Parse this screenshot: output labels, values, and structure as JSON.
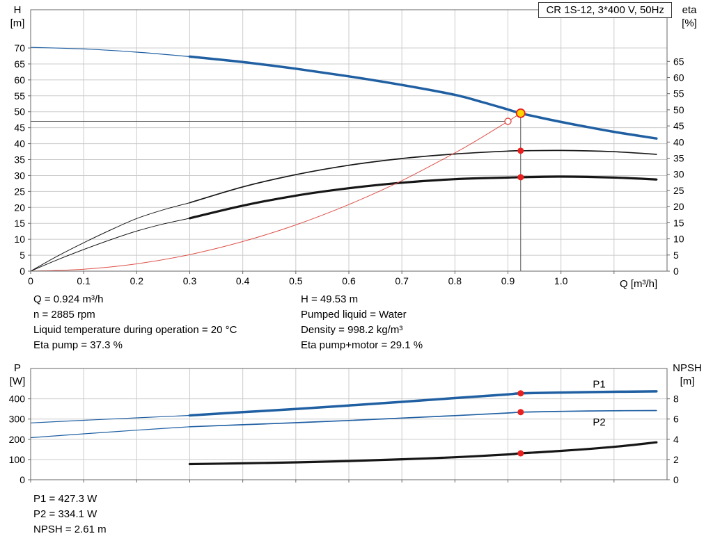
{
  "colors": {
    "blue": "#1f5fa2",
    "black": "#161616",
    "red": "#dd5148",
    "marker_red": "#e8201e",
    "yellow": "#ffd500",
    "grid": "#cbcbcb",
    "frame": "#666666",
    "ref": "#555555",
    "text": "#000000"
  },
  "operating_point_text": {
    "left": [
      "Q = 0.924 m³/h",
      "n = 2885 rpm",
      "Liquid temperature during operation = 20 °C",
      "Eta pump = 37.3 %"
    ],
    "right": [
      "H = 49.53 m",
      "Pumped liquid = Water",
      "Density = 998.2 kg/m³",
      "Eta pump+motor = 29.1 %"
    ]
  },
  "power_text": [
    "P1 = 427.3 W",
    "P2 = 334.1 W",
    "NPSH = 2.61 m"
  ],
  "chart_data": [
    {
      "type": "line",
      "name": "qh",
      "title": "CR 1S-12, 3*400 V, 50Hz",
      "x_axis": {
        "label": "Q [m³/h]",
        "min": 0,
        "max": 1.2,
        "ticks": [
          0,
          0.1,
          0.2,
          0.3,
          0.4,
          0.5,
          0.6,
          0.7,
          0.8,
          0.9,
          1.0,
          1.1
        ],
        "tick_labels": [
          "0",
          "0.1",
          "0.2",
          "0.3",
          "0.4",
          "0.5",
          "0.6",
          "0.7",
          "0.8",
          "0.9",
          "1.0",
          ""
        ],
        "show_labels": true
      },
      "y_left": {
        "name": "H",
        "unit": "[m]",
        "min": 0,
        "max": 82,
        "ticks": [
          0,
          5,
          10,
          15,
          20,
          25,
          30,
          35,
          40,
          45,
          50,
          55,
          60,
          65,
          70
        ]
      },
      "y_right": {
        "name": "eta",
        "unit": "[%]",
        "min": 0,
        "max": 81,
        "ticks": [
          0,
          5,
          10,
          15,
          20,
          25,
          30,
          35,
          40,
          45,
          50,
          55,
          60,
          65
        ]
      },
      "series": [
        {
          "name": "pump-curve-lead",
          "axis": "left",
          "color": "blue",
          "width": 1.2,
          "points": [
            [
              0,
              70.2
            ],
            [
              0.1,
              69.7
            ],
            [
              0.2,
              68.7
            ],
            [
              0.3,
              67.3
            ]
          ]
        },
        {
          "name": "pump-curve",
          "axis": "left",
          "color": "blue",
          "width": 3.5,
          "points": [
            [
              0.3,
              67.3
            ],
            [
              0.4,
              65.6
            ],
            [
              0.5,
              63.5
            ],
            [
              0.6,
              61.1
            ],
            [
              0.7,
              58.4
            ],
            [
              0.8,
              55.3
            ],
            [
              0.85,
              53.1
            ],
            [
              0.9,
              50.7
            ],
            [
              0.924,
              49.53
            ],
            [
              0.96,
              48.2
            ],
            [
              1.0,
              46.8
            ],
            [
              1.05,
              45.2
            ],
            [
              1.1,
              43.7
            ],
            [
              1.18,
              41.6
            ]
          ]
        },
        {
          "name": "eta-pump-lead",
          "axis": "right",
          "color": "black",
          "width": 1,
          "points": [
            [
              0,
              0
            ],
            [
              0.05,
              4.6
            ],
            [
              0.1,
              8.8
            ],
            [
              0.15,
              12.7
            ],
            [
              0.2,
              16.3
            ],
            [
              0.25,
              19.0
            ],
            [
              0.3,
              21.2
            ]
          ]
        },
        {
          "name": "eta-pump",
          "axis": "right",
          "color": "black",
          "width": 1.7,
          "points": [
            [
              0.3,
              21.2
            ],
            [
              0.4,
              26.1
            ],
            [
              0.5,
              29.9
            ],
            [
              0.6,
              32.8
            ],
            [
              0.7,
              34.9
            ],
            [
              0.8,
              36.3
            ],
            [
              0.9,
              37.2
            ],
            [
              0.924,
              37.3
            ],
            [
              1.0,
              37.4
            ],
            [
              1.1,
              37.0
            ],
            [
              1.18,
              36.2
            ]
          ]
        },
        {
          "name": "eta-pump-motor-lead",
          "axis": "right",
          "color": "black",
          "width": 1,
          "points": [
            [
              0,
              0
            ],
            [
              0.05,
              3.5
            ],
            [
              0.1,
              6.7
            ],
            [
              0.15,
              9.7
            ],
            [
              0.2,
              12.4
            ],
            [
              0.25,
              14.6
            ],
            [
              0.3,
              16.4
            ]
          ]
        },
        {
          "name": "eta-pump-motor",
          "axis": "right",
          "color": "black",
          "width": 3.2,
          "points": [
            [
              0.3,
              16.4
            ],
            [
              0.4,
              20.3
            ],
            [
              0.5,
              23.4
            ],
            [
              0.6,
              25.7
            ],
            [
              0.7,
              27.4
            ],
            [
              0.8,
              28.5
            ],
            [
              0.9,
              29.0
            ],
            [
              0.924,
              29.1
            ],
            [
              1.0,
              29.3
            ],
            [
              1.1,
              29.0
            ],
            [
              1.18,
              28.4
            ]
          ]
        },
        {
          "name": "system-curve",
          "axis": "left",
          "color": "red",
          "width": 1,
          "points": [
            [
              0,
              0
            ],
            [
              0.1,
              0.6
            ],
            [
              0.2,
              2.3
            ],
            [
              0.3,
              5.2
            ],
            [
              0.4,
              9.3
            ],
            [
              0.5,
              14.5
            ],
            [
              0.6,
              20.9
            ],
            [
              0.7,
              28.4
            ],
            [
              0.8,
              37.1
            ],
            [
              0.85,
              41.9
            ],
            [
              0.9,
              47.0
            ],
            [
              0.924,
              49.53
            ]
          ]
        }
      ],
      "ref_lines": [
        {
          "name": "head-ref-line",
          "orient": "h",
          "value": 47.0,
          "x_from": 0,
          "x_to": 0.9
        },
        {
          "name": "flow-ref-line",
          "orient": "v",
          "x": 0.924,
          "y_from": 0,
          "y_to": 49.53
        }
      ],
      "markers": [
        {
          "name": "requested-duty-point",
          "x": 0.9,
          "y": 47.0,
          "axis": "left",
          "style": "open"
        },
        {
          "name": "duty-point",
          "x": 0.924,
          "y": 49.53,
          "axis": "left",
          "style": "duty"
        },
        {
          "name": "eta-pump-point",
          "x": 0.924,
          "y": 37.3,
          "axis": "right",
          "style": "dot"
        },
        {
          "name": "eta-pump-motor-point",
          "x": 0.924,
          "y": 29.1,
          "axis": "right",
          "style": "dot"
        }
      ],
      "annotations": []
    },
    {
      "type": "line",
      "name": "power-npsh",
      "title": "",
      "x_axis": {
        "label": "",
        "min": 0,
        "max": 1.2,
        "ticks": [
          0,
          0.1,
          0.2,
          0.3,
          0.4,
          0.5,
          0.6,
          0.7,
          0.8,
          0.9,
          1.0,
          1.1
        ],
        "show_labels": false
      },
      "y_left": {
        "name": "P",
        "unit": "[W]",
        "min": 0,
        "max": 550,
        "ticks": [
          0,
          100,
          200,
          300,
          400
        ]
      },
      "y_right": {
        "name": "NPSH",
        "unit": "[m]",
        "min": 0,
        "max": 11,
        "ticks": [
          0,
          2,
          4,
          6,
          8
        ]
      },
      "series": [
        {
          "name": "p1-lead",
          "axis": "left",
          "color": "blue",
          "width": 1.2,
          "points": [
            [
              0,
              281
            ],
            [
              0.1,
              294
            ],
            [
              0.2,
              306
            ],
            [
              0.3,
              318
            ]
          ]
        },
        {
          "name": "p1",
          "axis": "left",
          "color": "blue",
          "width": 3.5,
          "points": [
            [
              0.3,
              318
            ],
            [
              0.4,
              334
            ],
            [
              0.5,
              350
            ],
            [
              0.6,
              367
            ],
            [
              0.7,
              385
            ],
            [
              0.8,
              404
            ],
            [
              0.9,
              422
            ],
            [
              0.924,
              427.3
            ],
            [
              1.0,
              431
            ],
            [
              1.1,
              435
            ],
            [
              1.18,
              437
            ]
          ]
        },
        {
          "name": "p2-lead",
          "axis": "left",
          "color": "blue",
          "width": 1.2,
          "points": [
            [
              0,
              208
            ],
            [
              0.1,
              227
            ],
            [
              0.2,
              245
            ],
            [
              0.3,
              262
            ]
          ]
        },
        {
          "name": "p2",
          "axis": "left",
          "color": "blue",
          "width": 1.7,
          "points": [
            [
              0.3,
              262
            ],
            [
              0.4,
              272
            ],
            [
              0.5,
              282
            ],
            [
              0.6,
              293
            ],
            [
              0.7,
              305
            ],
            [
              0.8,
              317
            ],
            [
              0.9,
              330
            ],
            [
              0.924,
              334.1
            ],
            [
              1.0,
              338
            ],
            [
              1.1,
              341
            ],
            [
              1.18,
              342
            ]
          ]
        },
        {
          "name": "npsh",
          "axis": "right",
          "color": "black",
          "width": 3.2,
          "points": [
            [
              0.3,
              1.55
            ],
            [
              0.4,
              1.62
            ],
            [
              0.5,
              1.72
            ],
            [
              0.6,
              1.85
            ],
            [
              0.7,
              2.02
            ],
            [
              0.8,
              2.22
            ],
            [
              0.9,
              2.5
            ],
            [
              0.924,
              2.61
            ],
            [
              1.0,
              2.85
            ],
            [
              1.1,
              3.25
            ],
            [
              1.18,
              3.7
            ]
          ]
        }
      ],
      "ref_lines": [],
      "markers": [
        {
          "name": "p1-point",
          "x": 0.924,
          "y": 427.3,
          "axis": "left",
          "style": "dot"
        },
        {
          "name": "p2-point",
          "x": 0.924,
          "y": 334.1,
          "axis": "left",
          "style": "dot"
        },
        {
          "name": "npsh-point",
          "x": 0.924,
          "y": 2.61,
          "axis": "right",
          "style": "dot"
        }
      ],
      "annotations": [
        {
          "name": "p1-label",
          "text": "P1",
          "x": 1.06,
          "y": 455,
          "axis": "left",
          "color": "blue"
        },
        {
          "name": "p2-label",
          "text": "P2",
          "x": 1.06,
          "y": 268,
          "axis": "left",
          "color": "blue"
        }
      ]
    }
  ]
}
